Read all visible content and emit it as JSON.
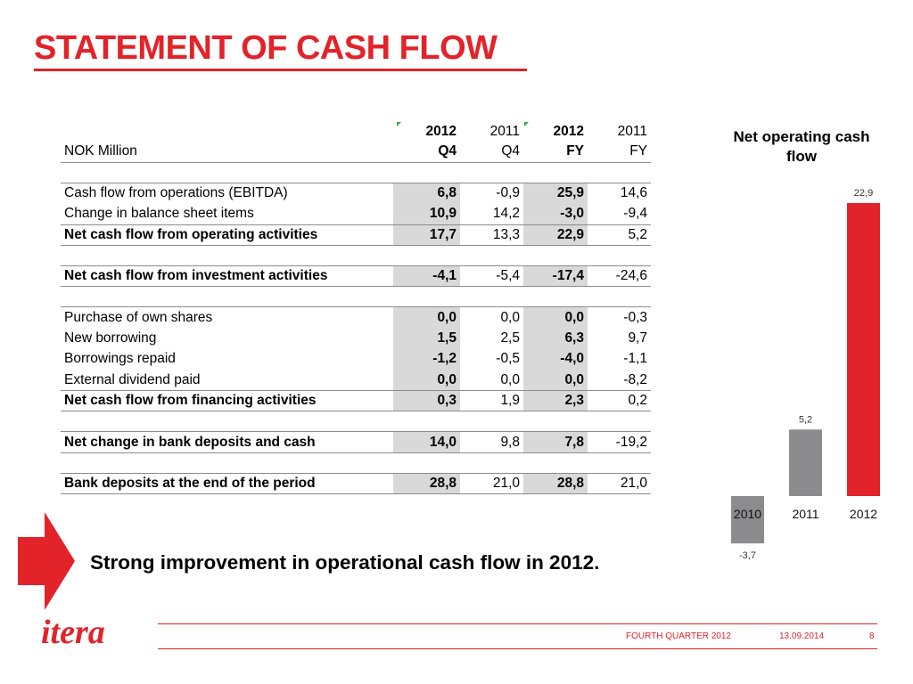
{
  "title": "STATEMENT OF CASH FLOW",
  "table": {
    "header_years": [
      "2012",
      "2011",
      "2012",
      "2011"
    ],
    "unit_label": "NOK Million",
    "header_periods": [
      "Q4",
      "Q4",
      "FY",
      "FY"
    ],
    "rows": [
      {
        "label": "Cash flow from operations (EBITDA)",
        "values": [
          "6,8",
          "-0,9",
          "25,9",
          "14,6"
        ]
      },
      {
        "label": "Change in balance sheet items",
        "values": [
          "10,9",
          "14,2",
          "-3,0",
          "-9,4"
        ]
      },
      {
        "label": "Net cash flow from operating activities",
        "values": [
          "17,7",
          "13,3",
          "22,9",
          "5,2"
        ]
      },
      {
        "label": "Net cash flow from investment activities",
        "values": [
          "-4,1",
          "-5,4",
          "-17,4",
          "-24,6"
        ]
      },
      {
        "label": "Purchase of own shares",
        "values": [
          "0,0",
          "0,0",
          "0,0",
          "-0,3"
        ]
      },
      {
        "label": "New borrowing",
        "values": [
          "1,5",
          "2,5",
          "6,3",
          "9,7"
        ]
      },
      {
        "label": "Borrowings repaid",
        "values": [
          "-1,2",
          "-0,5",
          "-4,0",
          "-1,1"
        ]
      },
      {
        "label": "External dividend paid",
        "values": [
          "0,0",
          "0,0",
          "0,0",
          "-8,2"
        ]
      },
      {
        "label": "Net cash flow from financing activities",
        "values": [
          "0,3",
          "1,9",
          "2,3",
          "0,2"
        ]
      },
      {
        "label": "Net change in bank deposits and cash",
        "values": [
          "14,0",
          "9,8",
          "7,8",
          "-19,2"
        ]
      },
      {
        "label": "Bank deposits at the end of the period",
        "values": [
          "28,8",
          "21,0",
          "28,8",
          "21,0"
        ]
      }
    ]
  },
  "chart_data": {
    "type": "bar",
    "title": "Net operating cash flow",
    "categories": [
      "2010",
      "2011",
      "2012"
    ],
    "values": [
      -3.7,
      5.2,
      22.9
    ],
    "value_labels": [
      "-3,7",
      "5,2",
      "22,9"
    ],
    "colors": [
      "#8c8c8e",
      "#8c8c8e",
      "#e2232a"
    ],
    "ylim": [
      -3.7,
      22.9
    ],
    "grid": false,
    "legend": "none"
  },
  "tagline": "Strong improvement in operational cash flow in 2012.",
  "footer": {
    "quarter": "FOURTH QUARTER 2012",
    "date": "13.09.2014",
    "page": "8",
    "logo_text": "itera"
  },
  "colors": {
    "accent": "#e2232a",
    "highlight": "#d9d9da",
    "bar_grey": "#8c8c8e",
    "flag_green": "#3ea33a"
  }
}
